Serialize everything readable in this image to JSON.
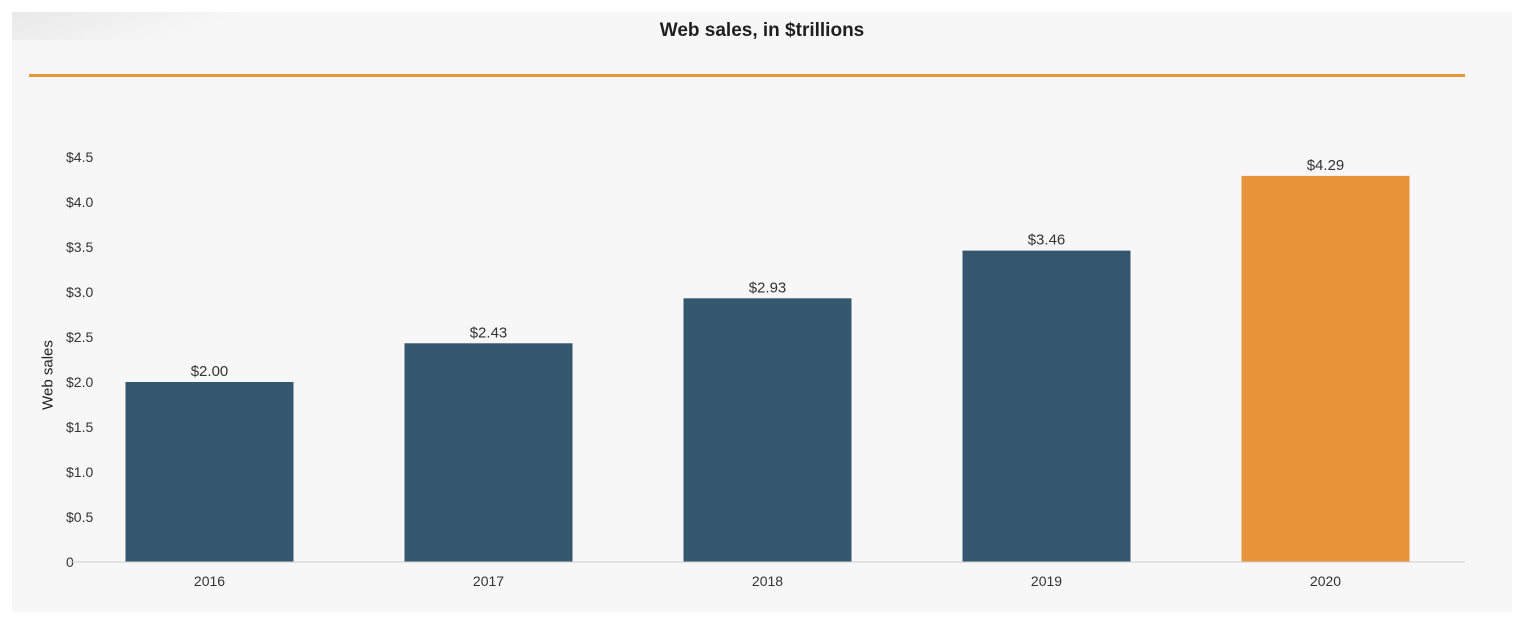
{
  "chart_data": {
    "type": "bar",
    "title": "Web sales, in $trillions",
    "ylabel": "Web sales",
    "xlabel": "",
    "categories": [
      "2016",
      "2017",
      "2018",
      "2019",
      "2020"
    ],
    "values": [
      2.0,
      2.43,
      2.93,
      3.46,
      4.29
    ],
    "data_labels": [
      "$2.00",
      "$2.43",
      "$2.93",
      "$3.46",
      "$4.29"
    ],
    "bar_colors": [
      "#34566f",
      "#34566f",
      "#34566f",
      "#34566f",
      "#e8943a"
    ],
    "ylim": [
      0,
      4.5
    ],
    "yticks": [
      0,
      0.5,
      1.0,
      1.5,
      2.0,
      2.5,
      3.0,
      3.5,
      4.0,
      4.5
    ],
    "ytick_labels": [
      "0",
      "$0.5",
      "$1.0",
      "$1.5",
      "$2.0",
      "$2.5",
      "$3.0",
      "$3.5",
      "$4.0",
      "$4.5"
    ],
    "grid": false,
    "legend": "none",
    "accent_color": "#e8943a",
    "bar_color": "#34566f"
  }
}
